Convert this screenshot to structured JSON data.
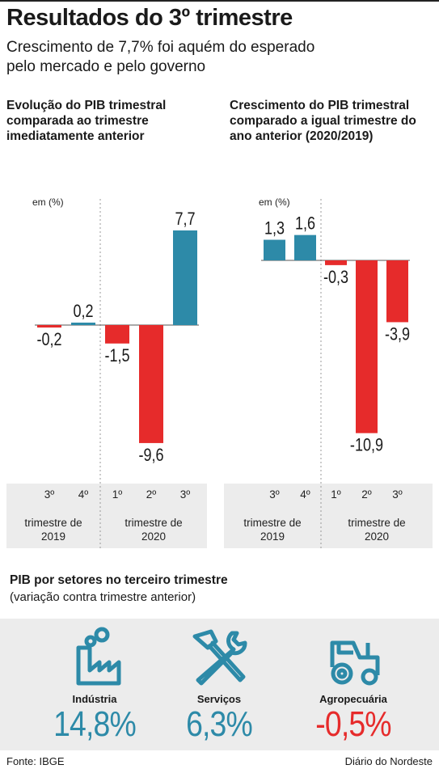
{
  "header": {
    "title": "Resultados do 3º trimestre",
    "subtitle": "Crescimento de 7,7% foi aquém do esperado pelo mercado e pelo governo"
  },
  "chart_data": [
    {
      "type": "bar",
      "title": "Evolução do PIB trimestral comparada ao trimestre imediatamente anterior",
      "ylabel": "em (%)",
      "categories": [
        "3º",
        "4º",
        "1º",
        "2º",
        "3º"
      ],
      "groups": [
        {
          "label": "trimestre de 2019",
          "categories": [
            "3º",
            "4º"
          ]
        },
        {
          "label": "trimestre de 2020",
          "categories": [
            "1º",
            "2º",
            "3º"
          ]
        }
      ],
      "values": [
        -0.2,
        0.2,
        -1.5,
        -9.6,
        7.7
      ],
      "value_labels": [
        "-0,2",
        "0,2",
        "-1,5",
        "-9,6",
        "7,7"
      ],
      "colors": {
        "positive": "#2d8aa8",
        "negative": "#e62b2b"
      }
    },
    {
      "type": "bar",
      "title": "Crescimento do PIB trimestral comparado a igual trimestre do ano anterior (2020/2019)",
      "ylabel": "em (%)",
      "categories": [
        "3º",
        "4º",
        "1º",
        "2º",
        "3º"
      ],
      "groups": [
        {
          "label": "trimestre de 2019",
          "categories": [
            "3º",
            "4º"
          ]
        },
        {
          "label": "trimestre de 2020",
          "categories": [
            "1º",
            "2º",
            "3º"
          ]
        }
      ],
      "values": [
        1.3,
        1.6,
        -0.3,
        -10.9,
        -3.9
      ],
      "value_labels": [
        "1,3",
        "1,6",
        "-0,3",
        "-10,9",
        "-3,9"
      ],
      "colors": {
        "positive": "#2d8aa8",
        "negative": "#e62b2b"
      }
    }
  ],
  "sectors": {
    "title": "PIB por setores no terceiro trimestre",
    "subtitle": "(variação contra trimestre anterior)",
    "items": [
      {
        "label": "Indústria",
        "value": "14,8%",
        "color": "#2d8aa8",
        "icon": "factory-icon"
      },
      {
        "label": "Serviços",
        "value": "6,3%",
        "color": "#2d8aa8",
        "icon": "wrench-hammer-icon"
      },
      {
        "label": "Agropecuária",
        "value": "-0,5%",
        "color": "#e62b2b",
        "icon": "tractor-icon"
      }
    ]
  },
  "footer": {
    "source": "Fonte:  IBGE",
    "brand": "Diário do Nordeste"
  }
}
